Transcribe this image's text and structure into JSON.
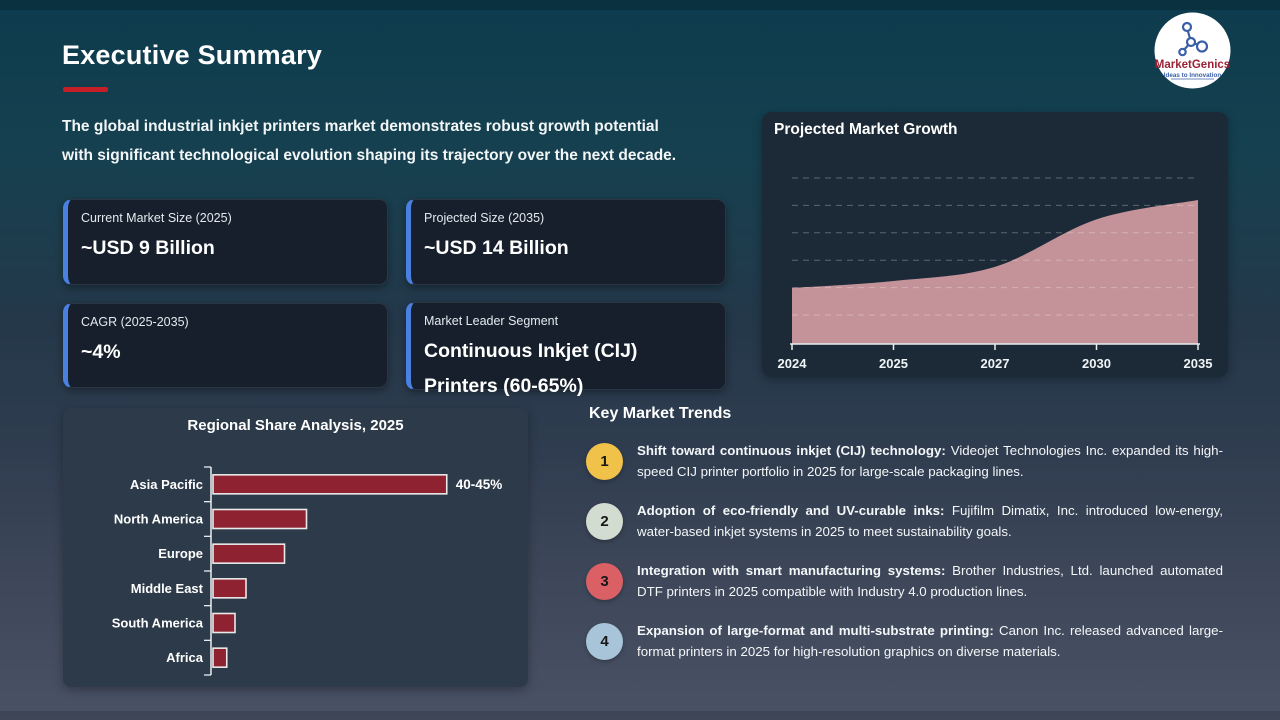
{
  "slide": {
    "title": "Executive Summary",
    "intro_lines": [
      "The global industrial inkjet printers market demonstrates robust growth potential",
      "with significant technological evolution shaping its trajectory over the next decade."
    ]
  },
  "logo": {
    "brand": "MarketGenics",
    "tagline": "Ideas to Innovation"
  },
  "colors": {
    "accent_red": "#c41e26",
    "card_accent_blue": "#4a80e0",
    "logo_brand_red": "#9b2335",
    "logo_blue": "#3a5fa8"
  },
  "stat_cards": [
    {
      "label": "Current Market Size (2025)",
      "value": "~USD 9 Billion"
    },
    {
      "label": "Projected Size (2035)",
      "value": "~USD 14 Billion"
    },
    {
      "label": "CAGR (2025-2035)",
      "value": "~4%"
    },
    {
      "label": "Market Leader Segment",
      "value": "Continuous Inkjet (CIJ) Printers (60-65%)"
    }
  ],
  "chart_data": [
    {
      "type": "area",
      "title": "Projected Market Growth",
      "x": [
        "2024",
        "2025",
        "2027",
        "2030",
        "2035"
      ],
      "values": [
        9.0,
        9.4,
        10.2,
        12.9,
        14.0
      ],
      "unit": "USD Billion (estimated from slide: 9B in 2025 to 14B in 2035)",
      "ylim": [
        5.8,
        16
      ],
      "grid": "horizontal dashed, no y-axis labels",
      "legend": "none",
      "fill_color": "#c39399",
      "axis_color": "#e8eef0"
    },
    {
      "type": "bar",
      "title": "Regional Share Analysis, 2025",
      "orientation": "horizontal",
      "categories": [
        "Asia Pacific",
        "North America",
        "Europe",
        "Middle East",
        "South America",
        "Africa"
      ],
      "values": [
        42.5,
        17,
        13,
        6,
        4,
        2.5
      ],
      "value_labels": [
        "40-45%",
        "",
        "",
        "",
        "",
        ""
      ],
      "xlabel": "",
      "ylabel": "",
      "xlim": [
        0,
        55
      ],
      "grid": "off",
      "bar_color": "#8e2230",
      "bar_border_color": "#e9e9e9",
      "axis_color": "#e9eef0"
    }
  ],
  "trends": {
    "heading": "Key Market Trends",
    "items": [
      {
        "num": "1",
        "badge_color": "#f0c24a",
        "bold": "Shift toward continuous inkjet (CIJ) technology:",
        "rest": " Videojet Technologies Inc. expanded its high-speed CIJ printer portfolio in 2025 for large-scale packaging lines."
      },
      {
        "num": "2",
        "badge_color": "#d3dcd0",
        "bold": "Adoption of eco-friendly and UV-curable inks:",
        "rest": " Fujifilm Dimatix, Inc. introduced low-energy, water-based inkjet systems in 2025 to meet sustainability goals."
      },
      {
        "num": "3",
        "badge_color": "#da6065",
        "bold": "Integration with smart manufacturing systems:",
        "rest": " Brother Industries, Ltd. launched automated DTF printers in 2025 compatible with Industry 4.0 production lines."
      },
      {
        "num": "4",
        "badge_color": "#a8c4d9",
        "bold": "Expansion of large-format and multi-substrate printing:",
        "rest": " Canon Inc. released advanced large-format printers in 2025 for high-resolution graphics on diverse materials."
      }
    ]
  }
}
